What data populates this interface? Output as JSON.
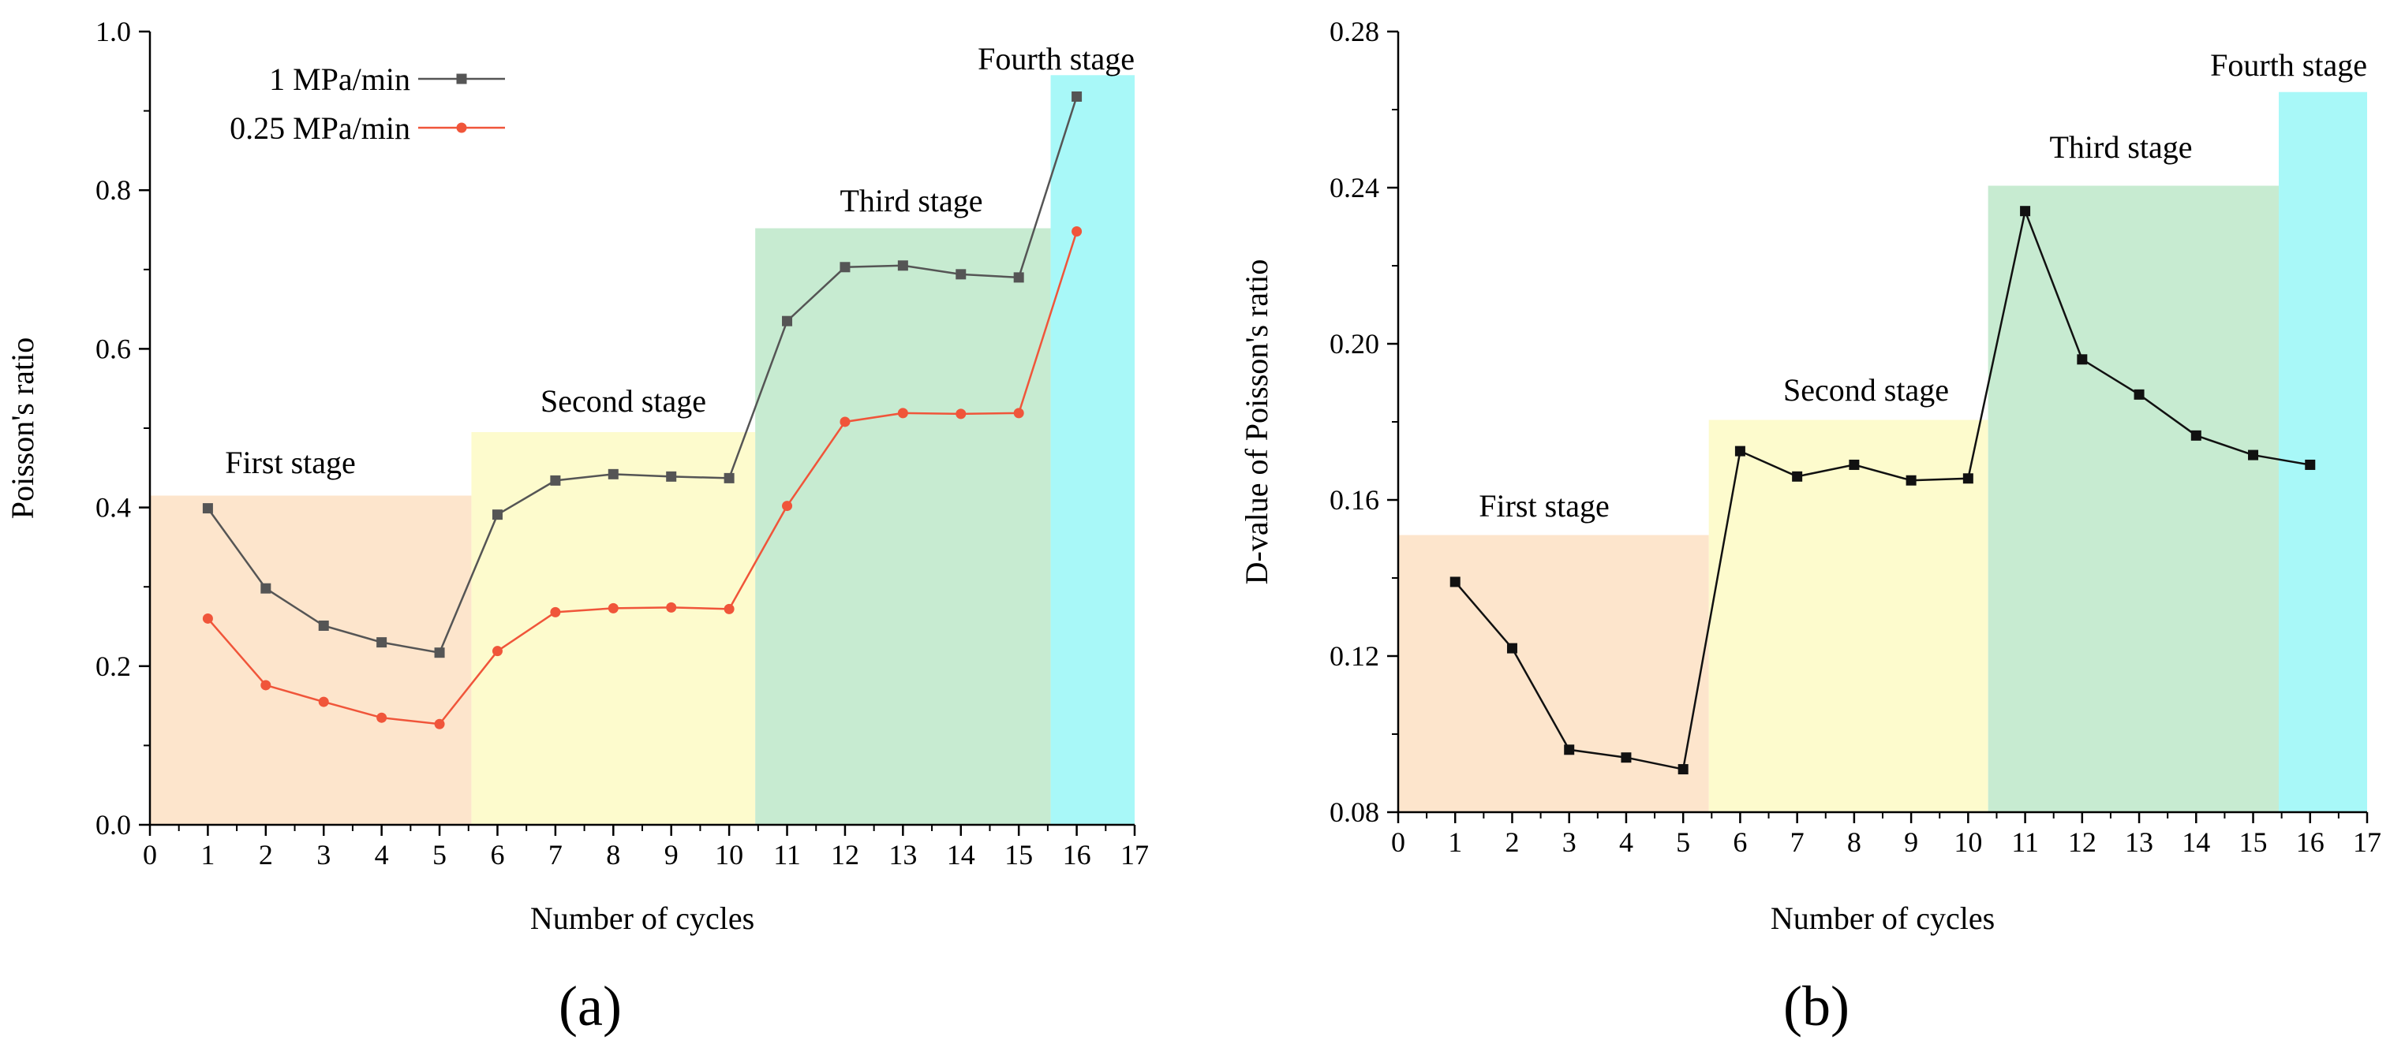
{
  "chart_data": [
    {
      "type": "line",
      "panel_label": "(a)",
      "xlabel": "Number of cycles",
      "ylabel": "Poisson's ratio",
      "xlim": [
        0,
        17
      ],
      "ylim": [
        0.0,
        1.0
      ],
      "xticks": [
        0,
        1,
        2,
        3,
        4,
        5,
        6,
        7,
        8,
        9,
        10,
        11,
        12,
        13,
        14,
        15,
        16,
        17
      ],
      "yticks": [
        0.0,
        0.2,
        0.4,
        0.6,
        0.8,
        1.0
      ],
      "ytick_labels": [
        "0.0",
        "0.2",
        "0.4",
        "0.6",
        "0.8",
        "1.0"
      ],
      "legend_position": "top-left",
      "stages": [
        {
          "label": "First stage",
          "x_start": 0,
          "x_end": 5.55,
          "y_top": 0.415,
          "color": "#fde5cc"
        },
        {
          "label": "Second stage",
          "x_start": 5.55,
          "x_end": 10.45,
          "y_top": 0.495,
          "color": "#fdfbcd"
        },
        {
          "label": "Third stage",
          "x_start": 10.45,
          "x_end": 15.55,
          "y_top": 0.752,
          "color": "#c7ebd1"
        },
        {
          "label": "Fourth stage",
          "x_start": 15.55,
          "x_end": 17,
          "y_top": 0.945,
          "color": "#a8f8f8"
        }
      ],
      "x": [
        1,
        2,
        3,
        4,
        5,
        6,
        7,
        8,
        9,
        10,
        11,
        12,
        13,
        14,
        15,
        16
      ],
      "series": [
        {
          "name": "1 MPa/min",
          "marker": "square",
          "color": "#555555",
          "values": [
            0.399,
            0.298,
            0.251,
            0.23,
            0.217,
            0.391,
            0.434,
            0.442,
            0.439,
            0.437,
            0.635,
            0.703,
            0.705,
            0.694,
            0.69,
            0.918
          ]
        },
        {
          "name": "0.25 MPa/min",
          "marker": "circle",
          "color": "#f0553a",
          "values": [
            0.26,
            0.176,
            0.155,
            0.135,
            0.127,
            0.219,
            0.268,
            0.273,
            0.274,
            0.272,
            0.402,
            0.508,
            0.519,
            0.518,
            0.519,
            0.748
          ]
        }
      ]
    },
    {
      "type": "line",
      "panel_label": "(b)",
      "xlabel": "Number of cycles",
      "ylabel": "D-value of Poisson's ratio",
      "xlim": [
        0,
        17
      ],
      "ylim": [
        0.08,
        0.28
      ],
      "xticks": [
        0,
        1,
        2,
        3,
        4,
        5,
        6,
        7,
        8,
        9,
        10,
        11,
        12,
        13,
        14,
        15,
        16,
        17
      ],
      "yticks": [
        0.08,
        0.12,
        0.16,
        0.2,
        0.24,
        0.28
      ],
      "ytick_labels": [
        "0.08",
        "0.12",
        "0.16",
        "0.20",
        "0.24",
        "0.28"
      ],
      "stages": [
        {
          "label": "First stage",
          "x_start": 0,
          "x_end": 5.45,
          "y_top": 0.151,
          "color": "#fde5cc"
        },
        {
          "label": "Second stage",
          "x_start": 5.45,
          "x_end": 10.35,
          "y_top": 0.1805,
          "color": "#fdfbcd"
        },
        {
          "label": "Third stage",
          "x_start": 10.35,
          "x_end": 15.45,
          "y_top": 0.2405,
          "color": "#c7ebd1"
        },
        {
          "label": "Fourth stage",
          "x_start": 15.45,
          "x_end": 17,
          "y_top": 0.2645,
          "color": "#a8f8f8"
        }
      ],
      "x": [
        1,
        2,
        3,
        4,
        5,
        6,
        7,
        8,
        9,
        10,
        11,
        12,
        13,
        14,
        15,
        16
      ],
      "series": [
        {
          "name": "D-value",
          "marker": "square",
          "color": "#111111",
          "values": [
            0.139,
            0.122,
            0.096,
            0.094,
            0.091,
            0.1725,
            0.166,
            0.169,
            0.165,
            0.1655,
            0.234,
            0.196,
            0.187,
            0.1765,
            0.1715,
            0.169
          ]
        }
      ]
    }
  ]
}
